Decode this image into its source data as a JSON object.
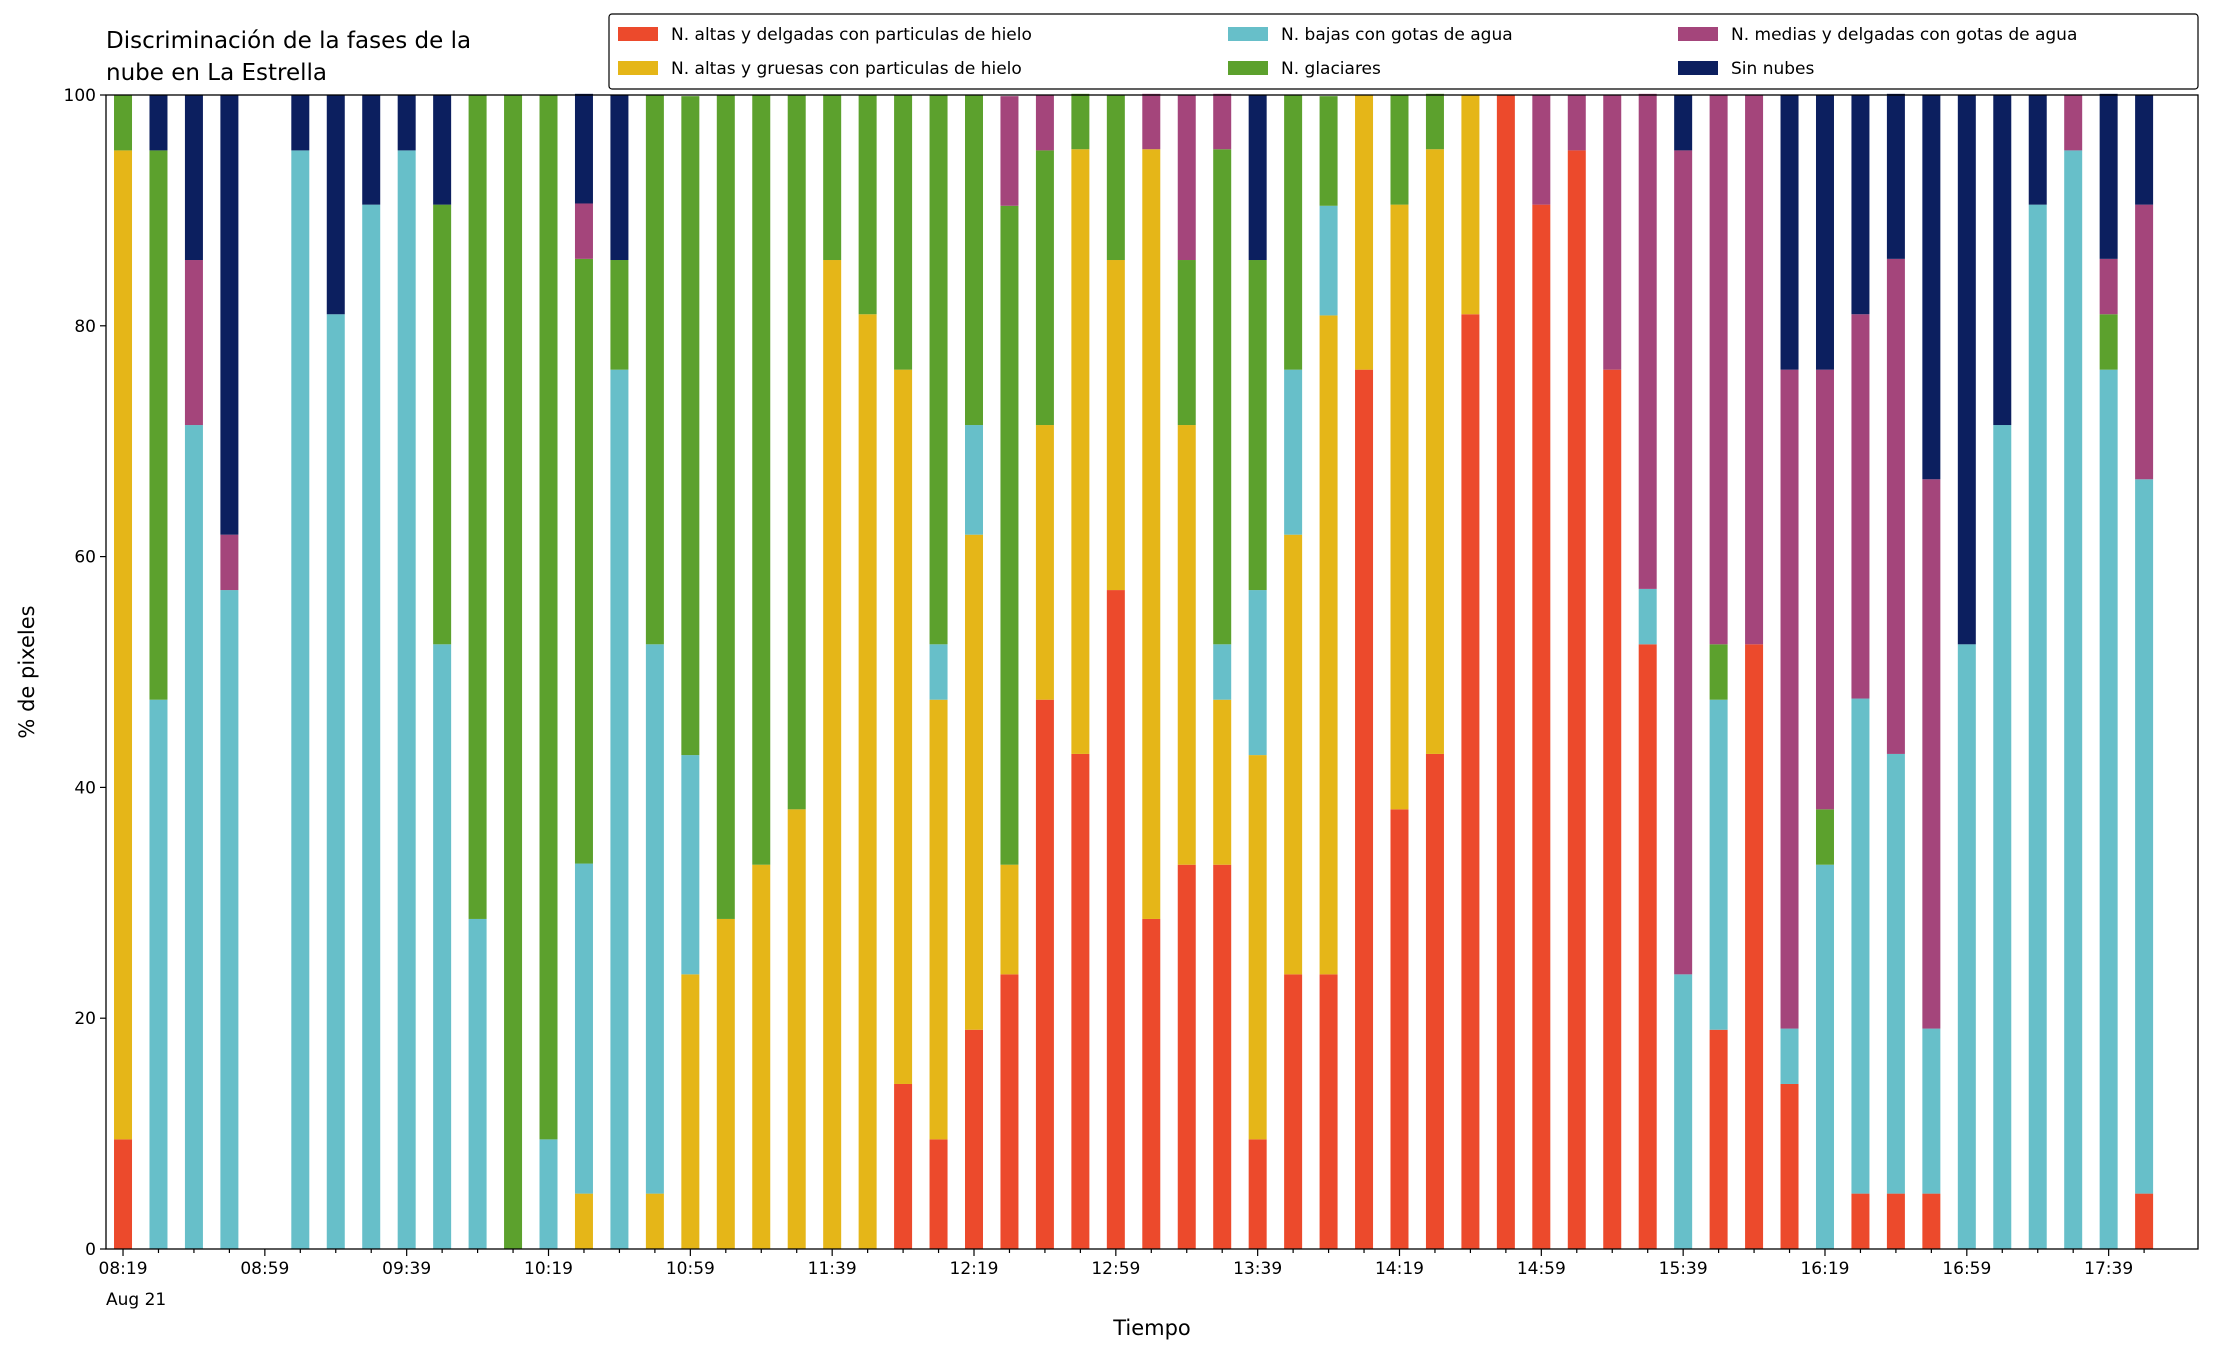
{
  "chart_data": {
    "type": "stacked_bar",
    "title": [
      "Discriminación de la fases de la",
      "nube en La Estrella"
    ],
    "x_label": "Tiempo",
    "y_label": "% de pixeles",
    "x_date_label": "Aug 21",
    "categories": [
      "08:19",
      null,
      null,
      null,
      "08:59",
      null,
      null,
      null,
      "09:39",
      null,
      null,
      null,
      "10:19",
      null,
      null,
      null,
      "10:59",
      null,
      null,
      null,
      "11:39",
      null,
      null,
      null,
      "12:19",
      null,
      null,
      null,
      "12:59",
      null,
      null,
      null,
      "13:39",
      null,
      null,
      null,
      "14:19",
      null,
      null,
      null,
      "14:59",
      null,
      null,
      null,
      "15:39",
      null,
      null,
      null,
      "16:19",
      null,
      null,
      null,
      "16:59",
      null,
      null,
      null,
      "17:39",
      null
    ],
    "ylim": [
      0,
      100
    ],
    "yticks": [
      0,
      20,
      40,
      60,
      80,
      100
    ],
    "legend": "top",
    "legend_columns": 3,
    "series": [
      {
        "name": "N. altas y delgadas con particulas de hielo",
        "color": "#ec4a2c",
        "values": [
          9.5,
          0,
          0,
          0,
          0,
          0,
          0,
          0,
          0,
          0,
          0,
          0,
          0,
          0,
          0,
          0,
          0,
          0,
          0,
          0,
          0,
          0,
          14.3,
          9.5,
          19,
          23.8,
          47.6,
          42.9,
          57.1,
          28.6,
          33.3,
          33.3,
          9.5,
          23.8,
          23.8,
          76.2,
          38.1,
          42.9,
          81,
          100,
          90.5,
          95.2,
          76.2,
          52.4,
          0,
          19,
          52.4,
          14.3,
          0,
          4.8,
          4.8,
          4.8,
          0,
          0,
          0,
          0,
          0,
          4.8
        ]
      },
      {
        "name": "N. altas y gruesas con particulas de hielo",
        "color": "#e5b618",
        "values": [
          85.7,
          0,
          0,
          0,
          0,
          0,
          0,
          0,
          0,
          0,
          0,
          0,
          0,
          4.8,
          0,
          4.8,
          23.8,
          28.6,
          33.3,
          38.1,
          85.7,
          81,
          61.9,
          38.1,
          42.9,
          9.5,
          23.8,
          52.4,
          28.6,
          66.7,
          38.1,
          14.3,
          33.3,
          38.1,
          57.1,
          23.8,
          52.4,
          52.4,
          19,
          0,
          0,
          0,
          0,
          0,
          0,
          0,
          0,
          0,
          0,
          0,
          0,
          0,
          0,
          0,
          0,
          0,
          0,
          0
        ]
      },
      {
        "name": "N. bajas con gotas de agua",
        "color": "#67bfc9",
        "values": [
          0,
          47.6,
          71.4,
          57.1,
          0,
          95.2,
          81,
          90.5,
          95.2,
          52.4,
          28.6,
          0,
          9.5,
          28.6,
          76.2,
          47.6,
          19,
          0,
          0,
          0,
          0,
          0,
          0,
          4.8,
          9.5,
          0,
          0,
          0,
          0,
          0,
          0,
          4.8,
          14.3,
          14.3,
          9.5,
          0,
          0,
          0,
          0,
          0,
          0,
          0,
          0,
          4.8,
          23.8,
          28.6,
          0,
          4.8,
          33.3,
          42.9,
          38.1,
          14.3,
          52.4,
          71.4,
          90.5,
          95.2,
          76.2,
          61.9
        ]
      },
      {
        "name": "N. glaciares",
        "color": "#5ca12d",
        "values": [
          4.8,
          47.6,
          0,
          0,
          0,
          0,
          0,
          0,
          0,
          38.1,
          71.4,
          100,
          90.5,
          52.4,
          9.5,
          47.6,
          57.1,
          71.4,
          66.7,
          61.9,
          14.3,
          19,
          23.8,
          47.6,
          28.6,
          57.1,
          23.8,
          4.8,
          14.3,
          0,
          14.3,
          42.9,
          28.6,
          23.8,
          9.5,
          0,
          9.5,
          4.8,
          0,
          0,
          0,
          0,
          0,
          0,
          0,
          4.8,
          0,
          0,
          4.8,
          0,
          0,
          0,
          0,
          0,
          0,
          0,
          4.8,
          0
        ]
      },
      {
        "name": "N. medias y delgadas con gotas de agua",
        "color": "#a4457b",
        "values": [
          0,
          0,
          14.3,
          4.8,
          0,
          0,
          0,
          0,
          0,
          0,
          0,
          0,
          0,
          4.8,
          0,
          0,
          0,
          0,
          0,
          0,
          0,
          0,
          0,
          0,
          0,
          9.5,
          4.8,
          0,
          0,
          4.8,
          14.3,
          4.8,
          0,
          0,
          0,
          0,
          0,
          0,
          0,
          0,
          9.5,
          4.8,
          23.8,
          42.9,
          71.4,
          47.6,
          47.6,
          57.1,
          38.1,
          33.3,
          42.9,
          47.6,
          0,
          0,
          0,
          4.8,
          4.8,
          23.8
        ]
      },
      {
        "name": "Sin nubes",
        "color": "#0c1f5f",
        "values": [
          0,
          4.8,
          14.3,
          38.1,
          0,
          4.8,
          19,
          9.5,
          4.8,
          9.5,
          0,
          0,
          0,
          9.5,
          14.3,
          0,
          0,
          0,
          0,
          0,
          0,
          0,
          0,
          0,
          0,
          0,
          0,
          0,
          0,
          0,
          0,
          0,
          14.3,
          0,
          0,
          0,
          0,
          0,
          0,
          0,
          0,
          0,
          0,
          0,
          4.8,
          0,
          0,
          23.8,
          23.8,
          19,
          14.3,
          33.3,
          47.6,
          28.6,
          9.5,
          0,
          14.3,
          9.5
        ]
      }
    ]
  }
}
